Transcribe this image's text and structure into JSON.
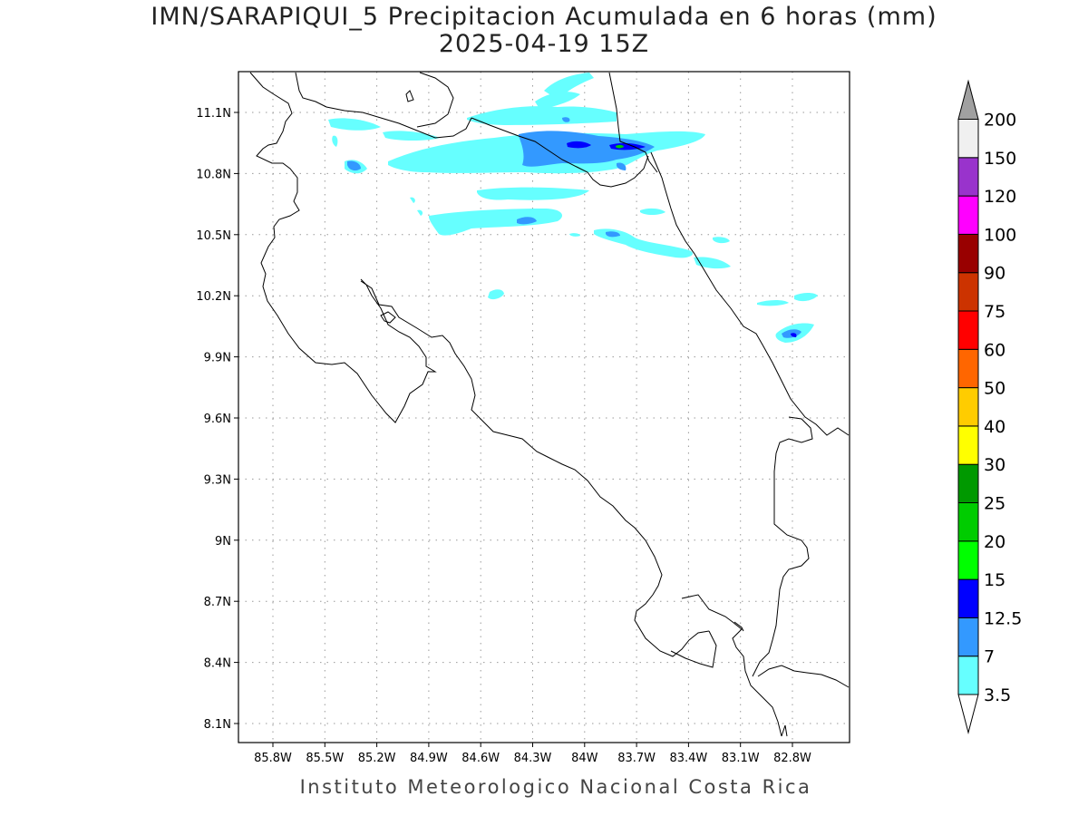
{
  "title_line1": "IMN/SARAPIQUI_5 Precipitacion Acumulada en 6 horas (mm)",
  "title_line2": "2025-04-19 15Z",
  "footer": "Instituto Meteorologico Nacional Costa Rica",
  "map": {
    "lon_ticks": [
      "85.8W",
      "85.5W",
      "85.2W",
      "84.9W",
      "84.6W",
      "84.3W",
      "84W",
      "83.7W",
      "83.4W",
      "83.1W",
      "82.8W"
    ],
    "lat_ticks": [
      "11.1N",
      "10.8N",
      "10.5N",
      "10.2N",
      "9.9N",
      "9.6N",
      "9.3N",
      "9N",
      "8.7N",
      "8.4N",
      "8.1N"
    ],
    "grid": "dotted"
  },
  "colorbar": {
    "levels": [
      {
        "label": "3.5",
        "color": "#66ffff"
      },
      {
        "label": "7",
        "color": "#3399ff"
      },
      {
        "label": "12.5",
        "color": "#0000ff"
      },
      {
        "label": "15",
        "color": "#00ff00"
      },
      {
        "label": "20",
        "color": "#00cc00"
      },
      {
        "label": "25",
        "color": "#009900"
      },
      {
        "label": "30",
        "color": "#ffff00"
      },
      {
        "label": "40",
        "color": "#ffcc00"
      },
      {
        "label": "50",
        "color": "#ff6600"
      },
      {
        "label": "60",
        "color": "#ff0000"
      },
      {
        "label": "75",
        "color": "#cc3300"
      },
      {
        "label": "90",
        "color": "#990000"
      },
      {
        "label": "100",
        "color": "#ff00ff"
      },
      {
        "label": "120",
        "color": "#9933cc"
      },
      {
        "label": "150",
        "color": "#f0f0f0"
      },
      {
        "label": "200",
        "color": "#a0a0a0"
      }
    ]
  }
}
